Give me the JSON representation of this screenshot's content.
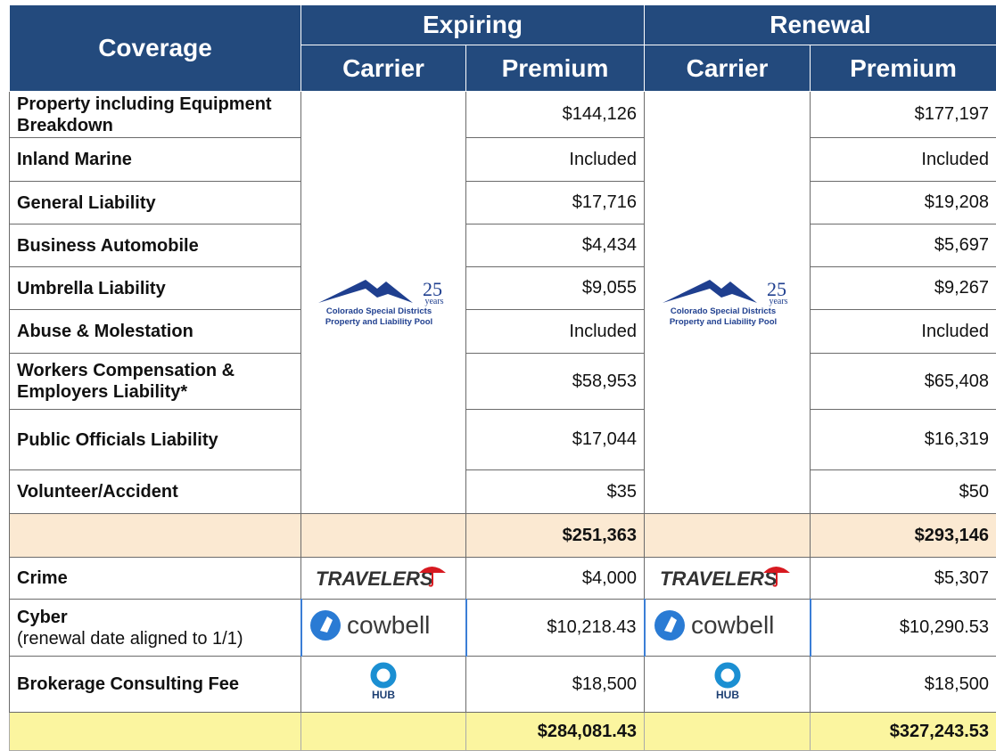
{
  "header": {
    "coverage": "Coverage",
    "expiring": {
      "label": "Expiring",
      "carrier": "Carrier",
      "premium": "Premium"
    },
    "renewal": {
      "label": "Renewal",
      "carrier": "Carrier",
      "premium": "Premium"
    }
  },
  "logos": {
    "pool": {
      "number": "25",
      "word": "years",
      "line1": "Colorado Special Districts",
      "line2": "Property and Liability Pool"
    },
    "travelers": "TRAVELERS",
    "cowbell": "cowbell",
    "hub": "HUB"
  },
  "rows": [
    {
      "coverage": "Property including Equipment Breakdown",
      "expiring": "$144,126",
      "renewal": "$177,197"
    },
    {
      "coverage": "Inland Marine",
      "expiring": "Included",
      "renewal": "Included"
    },
    {
      "coverage": "General Liability",
      "expiring": "$17,716",
      "renewal": "$19,208"
    },
    {
      "coverage": "Business Automobile",
      "expiring": "$4,434",
      "renewal": "$5,697"
    },
    {
      "coverage": "Umbrella Liability",
      "expiring": "$9,055",
      "renewal": "$9,267"
    },
    {
      "coverage": "Abuse & Molestation",
      "expiring": "Included",
      "renewal": "Included"
    },
    {
      "coverage": "Workers Compensation & Employers Liability*",
      "expiring": "$58,953",
      "renewal": "$65,408"
    },
    {
      "coverage": "Public Officials Liability",
      "expiring": "$17,044",
      "renewal": "$16,319"
    },
    {
      "coverage": "Volunteer/Accident",
      "expiring": "$35",
      "renewal": "$50"
    }
  ],
  "subtotal": {
    "expiring": "$251,363",
    "renewal": "$293,146"
  },
  "other_rows": [
    {
      "coverage": "Crime",
      "expiring": "$4,000",
      "renewal": "$5,307"
    },
    {
      "coverage": "Cyber",
      "note": "(renewal date aligned to 1/1)",
      "expiring": "$10,218.43",
      "renewal": "$10,290.53"
    },
    {
      "coverage": "Brokerage Consulting Fee",
      "expiring": "$18,500",
      "renewal": "$18,500"
    }
  ],
  "total": {
    "expiring": "$284,081.43",
    "renewal": "$327,243.53"
  }
}
